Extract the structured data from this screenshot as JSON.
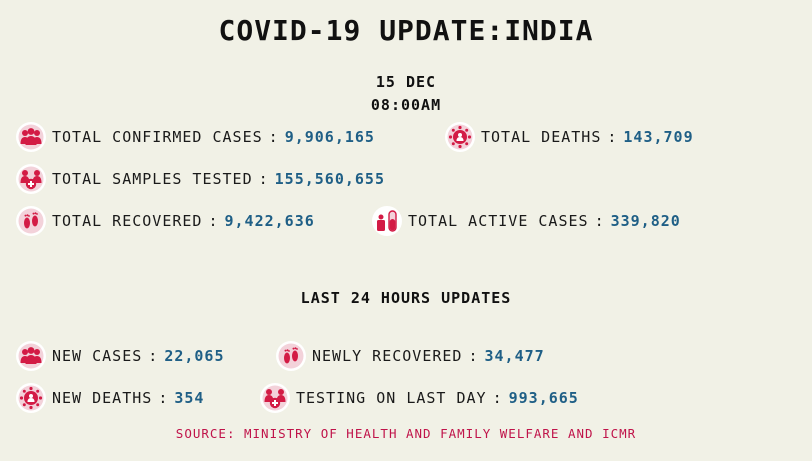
{
  "title": "COVID-19 UPDATE:INDIA",
  "date": "15 DEC",
  "time": "08:00AM",
  "colors": {
    "icon": "#d31b45",
    "value": "#1f5f86",
    "source": "#c0144a",
    "background": "#f1f1e6"
  },
  "totals": {
    "confirmed": {
      "label": "TOTAL CONFIRMED CASES",
      "value": "9,906,165",
      "icon": "people-group-icon"
    },
    "deaths": {
      "label": "TOTAL DEATHS",
      "value": "143,709",
      "icon": "virus-people-icon"
    },
    "tested": {
      "label": "TOTAL SAMPLES TESTED",
      "value": "155,560,655",
      "icon": "people-plus-icon"
    },
    "recovered": {
      "label": "TOTAL RECOVERED",
      "value": "9,422,636",
      "icon": "footprints-icon"
    },
    "active": {
      "label": "TOTAL ACTIVE CASES",
      "value": "339,820",
      "icon": "test-tube-icon"
    }
  },
  "last24": {
    "heading": "LAST 24 HOURS UPDATES",
    "new_cases": {
      "label": "NEW CASES",
      "value": "22,065",
      "icon": "people-group-icon"
    },
    "newly_recovered": {
      "label": "NEWLY RECOVERED",
      "value": "34,477",
      "icon": "footprints-icon"
    },
    "new_deaths": {
      "label": "NEW DEATHS",
      "value": "354",
      "icon": "virus-people-icon"
    },
    "testing": {
      "label": "TESTING ON LAST DAY",
      "value": "993,665",
      "icon": "people-plus-icon"
    }
  },
  "separator": ":",
  "source": "SOURCE: MINISTRY OF HEALTH AND FAMILY WELFARE AND ICMR"
}
